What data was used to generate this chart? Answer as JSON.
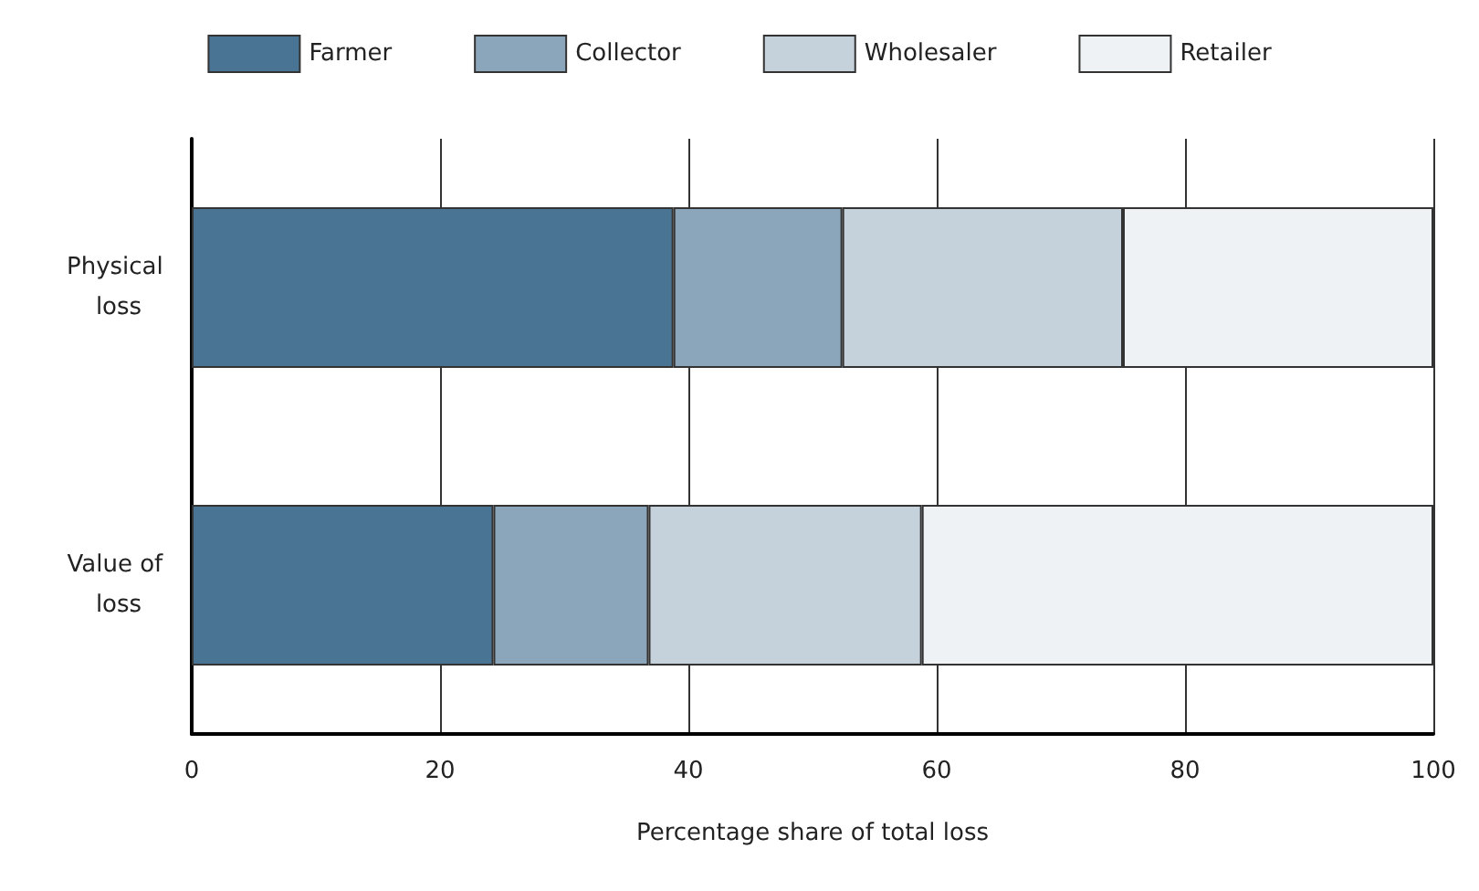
{
  "chart_data": {
    "type": "bar",
    "orientation": "horizontal",
    "stacked": true,
    "xlabel": "Percentage share of total loss",
    "categories": [
      "Physical loss",
      "Value of loss"
    ],
    "series": [
      {
        "name": "Farmer",
        "color": "#4a7494",
        "values": [
          38.8,
          24.3
        ]
      },
      {
        "name": "Collector",
        "color": "#8ba6bb",
        "values": [
          13.6,
          12.5
        ]
      },
      {
        "name": "Wholesaler",
        "color": "#c5d2db",
        "values": [
          22.6,
          22.0
        ]
      },
      {
        "name": "Retailer",
        "color": "#eef2f5",
        "values": [
          25.0,
          41.2
        ]
      }
    ],
    "xlim": [
      0,
      100
    ],
    "xticks": [
      0,
      20,
      40,
      60,
      80,
      100
    ],
    "grid": "x",
    "legend": "top"
  }
}
